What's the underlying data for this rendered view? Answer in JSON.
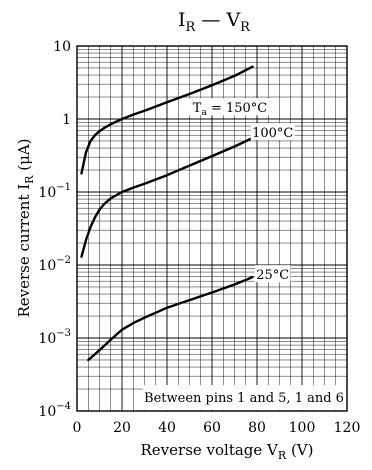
{
  "chart_data": {
    "type": "line",
    "title": {
      "main_a": "I",
      "sub_a": "R",
      "dash": " — ",
      "main_b": "V",
      "sub_b": "R"
    },
    "xlabel": {
      "text": "Reverse voltage  V",
      "sub": "R",
      "unit": "  (V)"
    },
    "ylabel": {
      "text": "Reverse current  I",
      "sub": "R",
      "unit": "  (μA)"
    },
    "x_ticks": [
      "0",
      "20",
      "40",
      "60",
      "80",
      "100",
      "120"
    ],
    "y_ticks": [
      {
        "base": "10",
        "exp": "−4"
      },
      {
        "base": "10",
        "exp": "−3"
      },
      {
        "base": "10",
        "exp": "−2"
      },
      {
        "base": "10",
        "exp": "−1"
      },
      {
        "base": "1",
        "exp": ""
      },
      {
        "base": "10",
        "exp": ""
      }
    ],
    "xlim": [
      0,
      120
    ],
    "ylim": [
      0.0001,
      10
    ],
    "yscale": "log",
    "grid": true,
    "annotation": "Between pins 1 and 5, 1 and 6",
    "series": [
      {
        "name": "Ta = 150°C",
        "label": {
          "pre": "T",
          "sub": "a",
          "post": " = 150°C"
        },
        "x": [
          2,
          4,
          6,
          8,
          10,
          12,
          15,
          20,
          25,
          30,
          40,
          50,
          60,
          70,
          78
        ],
        "y": [
          0.18,
          0.35,
          0.5,
          0.6,
          0.68,
          0.75,
          0.85,
          1.0,
          1.15,
          1.3,
          1.7,
          2.2,
          2.9,
          3.9,
          5.2
        ]
      },
      {
        "name": "100°C",
        "label": {
          "pre": "100°C",
          "sub": "",
          "post": ""
        },
        "x": [
          2,
          4,
          6,
          8,
          10,
          12,
          15,
          20,
          25,
          30,
          40,
          50,
          60,
          70,
          78
        ],
        "y": [
          0.013,
          0.022,
          0.033,
          0.045,
          0.057,
          0.068,
          0.082,
          0.1,
          0.115,
          0.13,
          0.17,
          0.23,
          0.31,
          0.42,
          0.55
        ]
      },
      {
        "name": "25°C",
        "label": {
          "pre": "25°C",
          "sub": "",
          "post": ""
        },
        "x": [
          5,
          8,
          10,
          15,
          20,
          25,
          30,
          40,
          50,
          60,
          70,
          78
        ],
        "y": [
          0.0005,
          0.0006,
          0.00068,
          0.00095,
          0.0013,
          0.0016,
          0.0019,
          0.0026,
          0.0033,
          0.0042,
          0.0054,
          0.0068
        ]
      }
    ]
  }
}
